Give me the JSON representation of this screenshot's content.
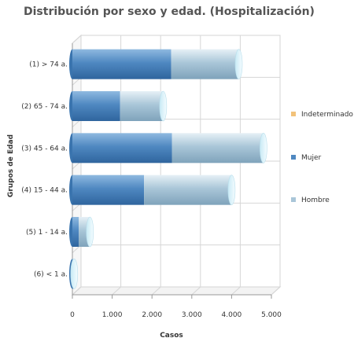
{
  "chart_data": {
    "type": "bar",
    "orientation": "horizontal",
    "stacked": true,
    "three_d": true,
    "title": "Distribución por sexo y edad. (Hospitalización)",
    "xlabel": "Casos",
    "ylabel": "Grupos de Edad",
    "xlim": [
      0,
      5000
    ],
    "x_ticks": [
      0,
      1000,
      2000,
      3000,
      4000,
      5000
    ],
    "x_tick_labels": [
      "0",
      "1.000",
      "2.000",
      "3.000",
      "4.000",
      "5.000"
    ],
    "categories": [
      "(1) > 74 a.",
      "(2) 65 - 74 a.",
      "(3) 45 - 64 a.",
      "(4) 15 - 44 a.",
      "(5) 1 - 14 a.",
      "(6) < 1 a."
    ],
    "series": [
      {
        "name": "Mujer",
        "color": "#4f88c1",
        "values": [
          2480,
          1200,
          2500,
          1800,
          160,
          15
        ]
      },
      {
        "name": "Hombre",
        "color": "#a9c6d8",
        "values": [
          1700,
          1080,
          2300,
          2200,
          280,
          30
        ]
      },
      {
        "name": "Indeterminado",
        "color": "#f2c27a",
        "values": [
          0,
          0,
          0,
          0,
          0,
          0
        ]
      }
    ],
    "legend_order": [
      "Indeterminado",
      "Mujer",
      "Hombre"
    ],
    "legend_position": "right",
    "grid": true
  }
}
